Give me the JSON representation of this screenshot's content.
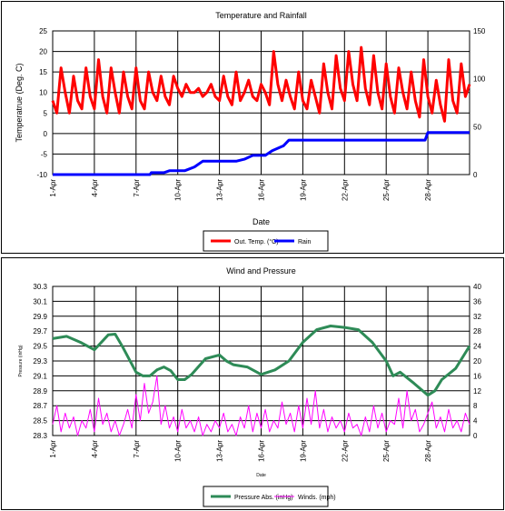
{
  "chart_data": [
    {
      "type": "line",
      "title": "Temperature and Rainfall",
      "xlabel": "Date",
      "ylabel": "Temperatrue (Deg. C)",
      "x_ticks": [
        "1-Apr",
        "4-Apr",
        "7-Apr",
        "10-Apr",
        "13-Apr",
        "16-Apr",
        "19-Apr",
        "22-Apr",
        "25-Apr",
        "28-Apr"
      ],
      "x_range_days": [
        1,
        31
      ],
      "y_left": {
        "range": [
          -10,
          25
        ],
        "ticks": [
          "25",
          "20",
          "15",
          "10",
          "5",
          "0",
          "-5",
          "-10"
        ]
      },
      "y_right": {
        "range": [
          0,
          150
        ],
        "ticks": [
          "150",
          "100",
          "50",
          "0"
        ]
      },
      "grid": true,
      "legend_position": "bottom",
      "series": [
        {
          "name": "Out. Temp. (°C)",
          "axis": "left",
          "color": "#ff0000",
          "x": [
            1,
            1.3,
            1.6,
            1.9,
            2.2,
            2.5,
            2.8,
            3.1,
            3.4,
            3.7,
            4,
            4.3,
            4.6,
            4.9,
            5.2,
            5.5,
            5.8,
            6.1,
            6.4,
            6.7,
            7,
            7.3,
            7.6,
            7.9,
            8.2,
            8.5,
            8.8,
            9.1,
            9.4,
            9.7,
            10,
            10.3,
            10.6,
            10.9,
            11.2,
            11.5,
            11.8,
            12.1,
            12.4,
            12.7,
            13,
            13.3,
            13.6,
            13.9,
            14.2,
            14.5,
            14.8,
            15.1,
            15.4,
            15.7,
            16,
            16.3,
            16.6,
            16.9,
            17.2,
            17.5,
            17.8,
            18.1,
            18.4,
            18.7,
            19,
            19.3,
            19.6,
            19.9,
            20.2,
            20.5,
            20.8,
            21.1,
            21.4,
            21.7,
            22,
            22.3,
            22.6,
            22.9,
            23.2,
            23.5,
            23.8,
            24.1,
            24.4,
            24.7,
            25,
            25.3,
            25.6,
            25.9,
            26.2,
            26.5,
            26.8,
            27.1,
            27.4,
            27.7,
            28,
            28.3,
            28.6,
            28.9,
            29.2,
            29.5,
            29.8,
            30.1,
            30.4,
            30.7,
            31
          ],
          "y": [
            8,
            5,
            16,
            10,
            5,
            14,
            8,
            6,
            16,
            9,
            6,
            18,
            9,
            5,
            16,
            10,
            5,
            15,
            9,
            6,
            16,
            8,
            6,
            15,
            10,
            8,
            14,
            9,
            7,
            14,
            11,
            9,
            12,
            10,
            10,
            11,
            9,
            10,
            12,
            9,
            8,
            14,
            9,
            7,
            15,
            8,
            10,
            13,
            9,
            8,
            12,
            10,
            7,
            20,
            12,
            8,
            13,
            9,
            6,
            15,
            8,
            6,
            13,
            9,
            5,
            17,
            10,
            6,
            19,
            11,
            8,
            20,
            12,
            8,
            21,
            11,
            7,
            19,
            10,
            6,
            17,
            9,
            5,
            16,
            10,
            6,
            15,
            8,
            4,
            18,
            9,
            5,
            13,
            7,
            3,
            18,
            8,
            5,
            17,
            9,
            12
          ]
        },
        {
          "name": "Rain",
          "axis": "right",
          "color": "#0000ff",
          "step": true,
          "x": [
            1,
            8,
            8.1,
            9,
            9.4,
            10.5,
            11.2,
            11.8,
            14.2,
            14.8,
            15.4,
            16.3,
            16.8,
            17.6,
            18,
            25.5,
            27.8,
            28,
            31
          ],
          "y": [
            0,
            0,
            2,
            2,
            4,
            4,
            8,
            14,
            14,
            16,
            20,
            20,
            25,
            30,
            36,
            36,
            36,
            44,
            44
          ]
        }
      ]
    },
    {
      "type": "line",
      "title": "Wind and Pressure",
      "xlabel": "Date",
      "ylabel": "Pressure (inHg)",
      "x_ticks": [
        "1-Apr",
        "4-Apr",
        "7-Apr",
        "10-Apr",
        "13-Apr",
        "16-Apr",
        "19-Apr",
        "22-Apr",
        "25-Apr",
        "28-Apr"
      ],
      "x_range_days": [
        1,
        31
      ],
      "y_left": {
        "range": [
          28.3,
          30.3
        ],
        "ticks": [
          "30.3",
          "30.1",
          "29.9",
          "29.7",
          "29.5",
          "29.3",
          "29.1",
          "28.9",
          "28.7",
          "28.5",
          "28.3"
        ]
      },
      "y_right": {
        "range": [
          0,
          40
        ],
        "ticks": [
          "40",
          "36",
          "32",
          "28",
          "24",
          "20",
          "16",
          "12",
          "8",
          "4",
          "0"
        ]
      },
      "grid": true,
      "legend_position": "bottom",
      "series": [
        {
          "name": "Pressure Abs. (inHg)",
          "axis": "left",
          "color": "#2e8b57",
          "x": [
            1,
            2,
            3,
            4,
            5,
            5.5,
            6,
            7,
            7.5,
            8,
            8.5,
            9,
            9.5,
            10,
            10.5,
            11,
            12,
            13,
            13.5,
            14,
            15,
            16,
            17,
            18,
            19,
            20,
            21,
            22,
            23,
            24,
            25,
            25.5,
            26,
            27,
            28,
            28.5,
            29,
            30,
            31
          ],
          "y": [
            29.6,
            29.63,
            29.55,
            29.45,
            29.65,
            29.66,
            29.5,
            29.15,
            29.1,
            29.1,
            29.18,
            29.22,
            29.17,
            29.05,
            29.05,
            29.12,
            29.33,
            29.38,
            29.3,
            29.25,
            29.22,
            29.12,
            29.18,
            29.3,
            29.55,
            29.72,
            29.77,
            29.75,
            29.72,
            29.55,
            29.3,
            29.1,
            29.15,
            29,
            28.84,
            28.9,
            29.05,
            29.2,
            29.5
          ]
        },
        {
          "name": "Winds. (mph)",
          "axis": "right",
          "color": "#ff00ff",
          "x": [
            1,
            1.3,
            1.6,
            1.9,
            2.2,
            2.5,
            2.8,
            3.1,
            3.4,
            3.7,
            4,
            4.3,
            4.6,
            4.9,
            5.2,
            5.5,
            5.8,
            6.1,
            6.4,
            6.7,
            7,
            7.3,
            7.6,
            7.9,
            8.2,
            8.5,
            8.8,
            9.1,
            9.4,
            9.7,
            10,
            10.3,
            10.6,
            10.9,
            11.2,
            11.5,
            11.8,
            12.1,
            12.4,
            12.7,
            13,
            13.3,
            13.6,
            13.9,
            14.2,
            14.5,
            14.8,
            15.1,
            15.4,
            15.7,
            16,
            16.3,
            16.6,
            16.9,
            17.2,
            17.5,
            17.8,
            18.1,
            18.4,
            18.7,
            19,
            19.3,
            19.6,
            19.9,
            20.2,
            20.5,
            20.8,
            21.1,
            21.4,
            21.7,
            22,
            22.3,
            22.6,
            22.9,
            23.2,
            23.5,
            23.8,
            24.1,
            24.4,
            24.7,
            25,
            25.3,
            25.6,
            25.9,
            26.2,
            26.5,
            26.8,
            27.1,
            27.4,
            27.7,
            28,
            28.3,
            28.6,
            28.9,
            29.2,
            29.5,
            29.8,
            30.1,
            30.4,
            30.7,
            31
          ],
          "y": [
            3,
            8,
            1,
            6,
            2,
            5,
            0,
            4,
            2,
            7,
            1,
            10,
            3,
            6,
            1,
            4,
            0,
            3,
            7,
            2,
            11,
            4,
            14,
            6,
            9,
            16,
            3,
            8,
            2,
            5,
            1,
            7,
            2,
            4,
            1,
            5,
            0,
            3,
            1,
            4,
            2,
            6,
            1,
            3,
            0,
            5,
            2,
            8,
            1,
            6,
            2,
            7,
            1,
            4,
            2,
            9,
            3,
            6,
            1,
            8,
            2,
            10,
            3,
            12,
            2,
            7,
            1,
            5,
            2,
            4,
            1,
            6,
            2,
            3,
            0,
            5,
            1,
            8,
            2,
            6,
            1,
            4,
            3,
            10,
            2,
            12,
            4,
            7,
            1,
            3,
            6,
            9,
            2,
            5,
            1,
            7,
            2,
            4,
            1,
            6,
            3
          ]
        }
      ]
    }
  ]
}
